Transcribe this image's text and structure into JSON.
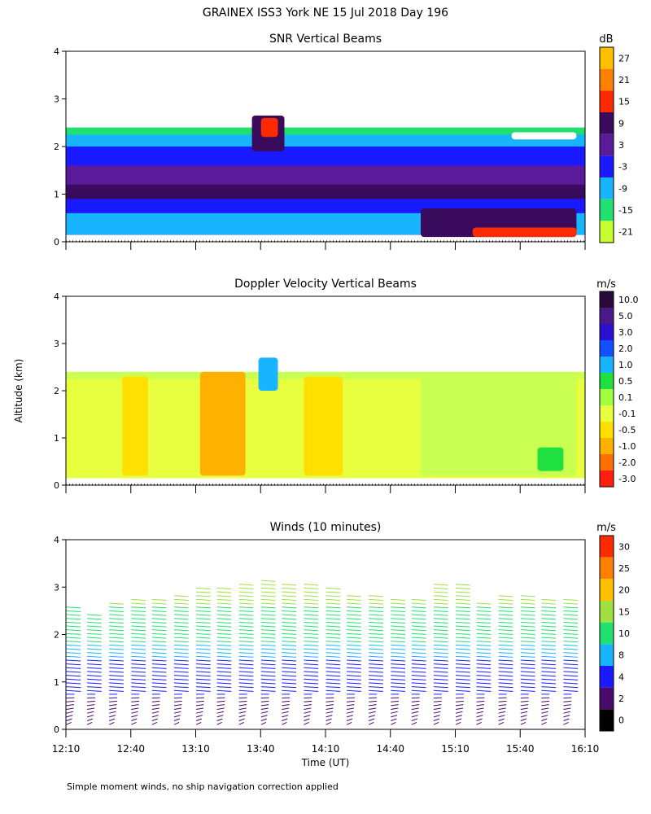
{
  "figure": {
    "title": "GRAINEX ISS3 York NE  15 Jul 2018 Day 196",
    "y_axis_label": "Altitude (km)",
    "x_axis_label": "Time (UT)",
    "footnote": "Simple moment winds, no ship navigation correction applied"
  },
  "chart_data": [
    {
      "type": "heatmap",
      "title": "SNR Vertical Beams",
      "units": "dB",
      "x_ticks": [
        "12:10",
        "12:40",
        "13:10",
        "13:40",
        "14:10",
        "14:40",
        "15:10",
        "15:40",
        "16:10"
      ],
      "y_ticks": [
        "0",
        "1",
        "2",
        "3",
        "4"
      ],
      "ylim": [
        0,
        4
      ],
      "colorbar": {
        "labels": [
          "27",
          "21",
          "15",
          "9",
          "3",
          "-3",
          "-9",
          "-15",
          "-21"
        ],
        "colors": [
          "#ffc000",
          "#ff8000",
          "#ff2a00",
          "#3a0a5c",
          "#5a1a9a",
          "#1a1aff",
          "#18b4ff",
          "#20e070",
          "#c8ff30"
        ]
      },
      "layers": [
        {
          "alt_top": 2.4,
          "color": "#20e070"
        },
        {
          "alt_top": 2.25,
          "color": "#18b4ff"
        },
        {
          "alt_top": 2.0,
          "color": "#1a1aff"
        },
        {
          "alt_top": 1.6,
          "color": "#5a1a9a"
        },
        {
          "alt_top": 1.2,
          "color": "#3a0a5c"
        },
        {
          "alt_top": 0.9,
          "color": "#1a1aff"
        },
        {
          "alt_top": 0.6,
          "color": "#18b4ff"
        }
      ],
      "features": [
        {
          "t0": 13.6,
          "t1": 13.85,
          "a0": 1.9,
          "a1": 2.65,
          "color": "#3a0a5c"
        },
        {
          "t0": 13.67,
          "t1": 13.8,
          "a0": 2.2,
          "a1": 2.6,
          "color": "#ff2a00"
        },
        {
          "t0": 14.9,
          "t1": 16.1,
          "a0": 0.1,
          "a1": 0.7,
          "color": "#3a0a5c"
        },
        {
          "t0": 15.3,
          "t1": 16.1,
          "a0": 0.1,
          "a1": 0.3,
          "color": "#ff2a00"
        },
        {
          "t0": 15.6,
          "t1": 16.1,
          "a0": 2.15,
          "a1": 2.3,
          "color": "#ffffff"
        }
      ]
    },
    {
      "type": "heatmap",
      "title": "Doppler Velocity Vertical Beams",
      "units": "m/s",
      "x_ticks": [
        "12:10",
        "12:40",
        "13:10",
        "13:40",
        "14:10",
        "14:40",
        "15:10",
        "15:40",
        "16:10"
      ],
      "y_ticks": [
        "0",
        "1",
        "2",
        "3",
        "4"
      ],
      "ylim": [
        0,
        4
      ],
      "colorbar": {
        "labels": [
          "10.0",
          "5.0",
          "3.0",
          "2.0",
          "1.0",
          "0.5",
          "0.1",
          "-0.1",
          "-0.5",
          "-1.0",
          "-2.0",
          "-3.0"
        ],
        "colors": [
          "#2a0a3a",
          "#4a1a8a",
          "#2a10d0",
          "#1050ff",
          "#18b4ff",
          "#20e040",
          "#a0ff40",
          "#e8ff40",
          "#ffe000",
          "#ffb000",
          "#ff7000",
          "#ff2010"
        ]
      },
      "layers": [
        {
          "alt_top": 2.4,
          "color": "#c8ff50"
        },
        {
          "alt_top": 2.25,
          "color": "#e8ff40"
        }
      ],
      "features": [
        {
          "t0": 12.6,
          "t1": 12.8,
          "a0": 0.2,
          "a1": 2.3,
          "color": "#ffe000"
        },
        {
          "t0": 13.2,
          "t1": 13.55,
          "a0": 0.2,
          "a1": 2.4,
          "color": "#ffb000"
        },
        {
          "t0": 13.65,
          "t1": 13.8,
          "a0": 2.0,
          "a1": 2.7,
          "color": "#18b4ff"
        },
        {
          "t0": 14.0,
          "t1": 14.3,
          "a0": 0.2,
          "a1": 2.3,
          "color": "#ffe000"
        },
        {
          "t0": 14.9,
          "t1": 16.1,
          "a0": 0.2,
          "a1": 2.3,
          "color": "#c8ff50"
        },
        {
          "t0": 15.8,
          "t1": 16.0,
          "a0": 0.3,
          "a1": 0.8,
          "color": "#20e040"
        }
      ]
    },
    {
      "type": "wind-barbs",
      "title": "Winds (10 minutes)",
      "units": "m/s",
      "x_ticks": [
        "12:10",
        "12:40",
        "13:10",
        "13:40",
        "14:10",
        "14:40",
        "15:10",
        "15:40",
        "16:10"
      ],
      "y_ticks": [
        "0",
        "1",
        "2",
        "3",
        "4"
      ],
      "ylim": [
        0,
        4
      ],
      "colorbar": {
        "labels": [
          "30",
          "25",
          "20",
          "15",
          "10",
          "8",
          "4",
          "2",
          "0"
        ],
        "colors": [
          "#ff2a00",
          "#ff8000",
          "#ffc000",
          "#a0e040",
          "#20e070",
          "#18b4ff",
          "#1a1aff",
          "#4a0a6a",
          "#000000"
        ]
      },
      "profile_times": [
        12.17,
        12.33,
        12.5,
        12.67,
        12.83,
        13.0,
        13.17,
        13.33,
        13.5,
        13.67,
        13.83,
        14.0,
        14.17,
        14.33,
        14.5,
        14.67,
        14.83,
        15.0,
        15.17,
        15.33,
        15.5,
        15.67,
        15.83,
        16.0
      ],
      "profile_tops": [
        2.6,
        2.5,
        2.7,
        2.8,
        2.8,
        2.9,
        3.0,
        3.0,
        3.1,
        3.2,
        3.1,
        3.1,
        3.0,
        2.9,
        2.9,
        2.8,
        2.8,
        3.1,
        3.1,
        2.7,
        2.9,
        2.9,
        2.8,
        2.8
      ]
    }
  ]
}
